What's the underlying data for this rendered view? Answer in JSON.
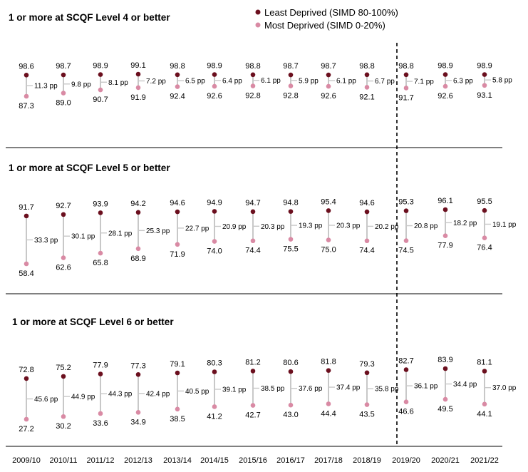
{
  "chart_data": {
    "type": "dumbbell",
    "legend": {
      "placement": "top-right",
      "entries": [
        {
          "label": "Least Deprived (SIMD 80-100%)",
          "color": "#6b0f1e"
        },
        {
          "label": "Most Deprived (SIMD 0-20%)",
          "color": "#d98aa4"
        }
      ]
    },
    "categories": [
      "2009/10",
      "2010/11",
      "2011/12",
      "2012/13",
      "2013/14",
      "2014/15",
      "2015/16",
      "2016/17",
      "2017/18",
      "2018/19",
      "2019/20",
      "2020/21",
      "2021/22"
    ],
    "divider_after": "2018/19",
    "gap_unit": "pp",
    "colors": {
      "least": "#6b0f1e",
      "most": "#d98aa4",
      "connector": "#c8c8c8",
      "divider": "#000000"
    },
    "panels": [
      {
        "title": "1 or more at SCQF Level 4 or better",
        "least": [
          98.6,
          98.7,
          98.9,
          99.1,
          98.8,
          98.9,
          98.8,
          98.7,
          98.7,
          98.8,
          98.8,
          98.9,
          98.9
        ],
        "most": [
          87.3,
          89.0,
          90.7,
          91.9,
          92.4,
          92.6,
          92.8,
          92.8,
          92.6,
          92.1,
          91.7,
          92.6,
          93.1
        ],
        "gap": [
          11.3,
          9.8,
          8.1,
          7.2,
          6.5,
          6.4,
          6.1,
          5.9,
          6.1,
          6.7,
          7.1,
          6.3,
          5.8
        ]
      },
      {
        "title": "1 or more at SCQF Level 5 or better",
        "least": [
          91.7,
          92.7,
          93.9,
          94.2,
          94.6,
          94.9,
          94.7,
          94.8,
          95.4,
          94.6,
          95.3,
          96.1,
          95.5
        ],
        "most": [
          58.4,
          62.6,
          65.8,
          68.9,
          71.9,
          74.0,
          74.4,
          75.5,
          75.0,
          74.4,
          74.5,
          77.9,
          76.4
        ],
        "gap": [
          33.3,
          30.1,
          28.1,
          25.3,
          22.7,
          20.9,
          20.3,
          19.3,
          20.3,
          20.2,
          20.8,
          18.2,
          19.1
        ]
      },
      {
        "title": "1 or more at SCQF Level 6 or better",
        "least": [
          72.8,
          75.2,
          77.9,
          77.3,
          79.1,
          80.3,
          81.2,
          80.6,
          81.8,
          79.3,
          82.7,
          83.9,
          81.1
        ],
        "most": [
          27.2,
          30.2,
          33.6,
          34.9,
          38.5,
          41.2,
          42.7,
          43.0,
          44.4,
          43.5,
          46.6,
          49.5,
          44.1
        ],
        "gap": [
          45.6,
          44.9,
          44.3,
          42.4,
          40.5,
          39.1,
          38.5,
          37.6,
          37.4,
          35.8,
          36.1,
          34.4,
          37.0
        ]
      }
    ]
  }
}
